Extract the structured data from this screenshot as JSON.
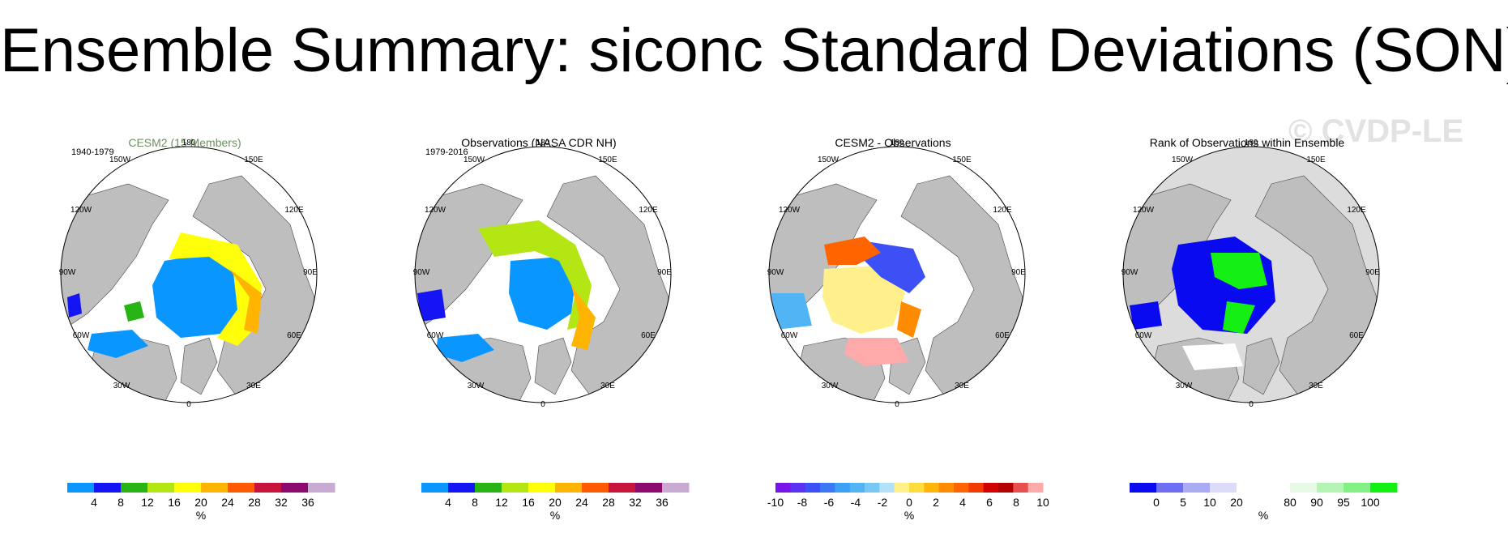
{
  "title": "Ensemble Summary: siconc Standard Deviations (SON)",
  "watermark": "© CVDP-LE",
  "colors": {
    "land": "#bebebe",
    "ocean": "#ffffff",
    "outside": "#ffffff"
  },
  "longitude_labels": [
    "180",
    "150E",
    "120E",
    "90E",
    "60E",
    "30E",
    "0",
    "30W",
    "60W",
    "90W",
    "120W",
    "150W"
  ],
  "panels": [
    {
      "title": "CESM2 (15 Members)",
      "title_color": "#6f8f5f",
      "period": "1940-1979",
      "colorbar": {
        "colors": [
          "#0a96ff",
          "#1414f5",
          "#28b414",
          "#b4e614",
          "#ffff0a",
          "#ffb400",
          "#ff5a00",
          "#c8143c",
          "#8c0a6e",
          "#c8aad2"
        ],
        "labels": [
          "4",
          "8",
          "12",
          "16",
          "20",
          "24",
          "28",
          "32",
          "36"
        ],
        "unit": "%"
      }
    },
    {
      "title": "Observations (NASA CDR NH)",
      "title_color": "#000000",
      "period": "1979-2016",
      "colorbar": {
        "colors": [
          "#0a96ff",
          "#1414f5",
          "#28b414",
          "#b4e614",
          "#ffff0a",
          "#ffb400",
          "#ff5a00",
          "#c8143c",
          "#8c0a6e",
          "#c8aad2"
        ],
        "labels": [
          "4",
          "8",
          "12",
          "16",
          "20",
          "24",
          "28",
          "32",
          "36"
        ],
        "unit": "%"
      }
    },
    {
      "title": "CESM2 - Observations",
      "title_color": "#000000",
      "period": "",
      "colorbar": {
        "colors": [
          "#7814e6",
          "#5a32f0",
          "#3c50f5",
          "#3c78f5",
          "#3ca0f5",
          "#50b4f5",
          "#78c8f5",
          "#b4e1fa",
          "#fff08c",
          "#ffdc3c",
          "#ffb40a",
          "#ff8c00",
          "#ff6400",
          "#f03c00",
          "#d20000",
          "#b40000",
          "#e65050",
          "#ffaaaa"
        ],
        "labels": [
          "-10",
          "-8",
          "-6",
          "-4",
          "-2",
          "0",
          "2",
          "4",
          "6",
          "8",
          "10"
        ],
        "unit": "%"
      }
    },
    {
      "title": "Rank of Observations within Ensemble",
      "title_color": "#000000",
      "period": "",
      "colorbar": {
        "colors": [
          "#0a0af0",
          "#6e6ef5",
          "#aaaaf5",
          "#dcdcfa",
          "#ffffff",
          "#ffffff",
          "#e6fae6",
          "#b4f5b4",
          "#82f082",
          "#14f014"
        ],
        "labels": [
          "0",
          "5",
          "10",
          "20",
          "80",
          "90",
          "95",
          "100"
        ],
        "unit": "%"
      }
    }
  ]
}
